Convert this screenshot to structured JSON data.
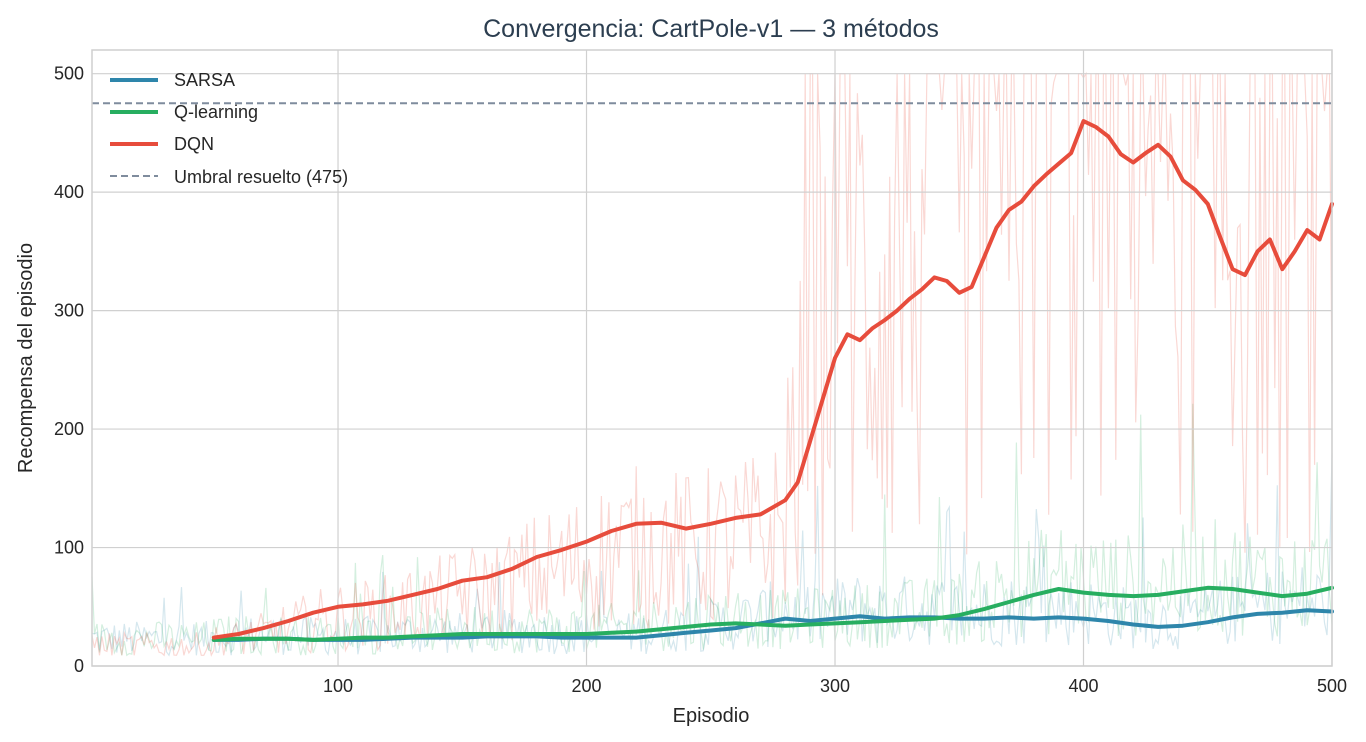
{
  "chart_data": {
    "type": "line",
    "title": "Convergencia: CartPole-v1 — 3 métodos",
    "xlabel": "Episodio",
    "ylabel": "Recompensa del episodio",
    "xlim": [
      1,
      500
    ],
    "ylim": [
      0,
      520
    ],
    "x_ticks": [
      "100",
      "200",
      "300",
      "400",
      "500"
    ],
    "y_ticks": [
      "0",
      "100",
      "200",
      "300",
      "400",
      "500"
    ],
    "grid": true,
    "legend_position": "top-left",
    "threshold": {
      "name": "Umbral resuelto (475)",
      "value": 475,
      "color": "#7f8c9d"
    },
    "series": [
      {
        "name": "SARSA",
        "color": "#2e86ab",
        "smoothed": [
          [
            50,
            22
          ],
          [
            60,
            22
          ],
          [
            70,
            23
          ],
          [
            80,
            23
          ],
          [
            90,
            22
          ],
          [
            100,
            22
          ],
          [
            110,
            22
          ],
          [
            120,
            23
          ],
          [
            130,
            24
          ],
          [
            140,
            24
          ],
          [
            150,
            24
          ],
          [
            160,
            25
          ],
          [
            170,
            25
          ],
          [
            180,
            25
          ],
          [
            190,
            24
          ],
          [
            200,
            24
          ],
          [
            210,
            24
          ],
          [
            220,
            24
          ],
          [
            230,
            26
          ],
          [
            240,
            28
          ],
          [
            250,
            30
          ],
          [
            260,
            32
          ],
          [
            270,
            36
          ],
          [
            280,
            40
          ],
          [
            290,
            38
          ],
          [
            300,
            40
          ],
          [
            310,
            42
          ],
          [
            320,
            40
          ],
          [
            330,
            41
          ],
          [
            340,
            41
          ],
          [
            350,
            40
          ],
          [
            360,
            40
          ],
          [
            370,
            41
          ],
          [
            380,
            40
          ],
          [
            390,
            41
          ],
          [
            400,
            40
          ],
          [
            410,
            38
          ],
          [
            420,
            35
          ],
          [
            430,
            33
          ],
          [
            440,
            34
          ],
          [
            450,
            37
          ],
          [
            460,
            41
          ],
          [
            470,
            44
          ],
          [
            480,
            45
          ],
          [
            490,
            47
          ],
          [
            500,
            46
          ]
        ]
      },
      {
        "name": "Q-learning",
        "color": "#27ae60",
        "smoothed": [
          [
            50,
            22
          ],
          [
            60,
            23
          ],
          [
            70,
            23
          ],
          [
            80,
            23
          ],
          [
            90,
            22
          ],
          [
            100,
            23
          ],
          [
            110,
            24
          ],
          [
            120,
            24
          ],
          [
            130,
            25
          ],
          [
            140,
            26
          ],
          [
            150,
            27
          ],
          [
            160,
            27
          ],
          [
            170,
            27
          ],
          [
            180,
            27
          ],
          [
            190,
            27
          ],
          [
            200,
            27
          ],
          [
            210,
            28
          ],
          [
            220,
            29
          ],
          [
            230,
            31
          ],
          [
            240,
            33
          ],
          [
            250,
            35
          ],
          [
            260,
            36
          ],
          [
            270,
            35
          ],
          [
            280,
            34
          ],
          [
            290,
            35
          ],
          [
            300,
            36
          ],
          [
            310,
            37
          ],
          [
            320,
            38
          ],
          [
            330,
            39
          ],
          [
            340,
            40
          ],
          [
            350,
            43
          ],
          [
            360,
            48
          ],
          [
            370,
            54
          ],
          [
            380,
            60
          ],
          [
            390,
            65
          ],
          [
            400,
            62
          ],
          [
            410,
            60
          ],
          [
            420,
            59
          ],
          [
            430,
            60
          ],
          [
            440,
            63
          ],
          [
            450,
            66
          ],
          [
            460,
            65
          ],
          [
            470,
            62
          ],
          [
            480,
            59
          ],
          [
            490,
            61
          ],
          [
            500,
            66
          ]
        ]
      },
      {
        "name": "DQN",
        "color": "#e74c3c",
        "smoothed": [
          [
            50,
            24
          ],
          [
            60,
            27
          ],
          [
            70,
            32
          ],
          [
            80,
            38
          ],
          [
            90,
            45
          ],
          [
            100,
            50
          ],
          [
            110,
            52
          ],
          [
            120,
            55
          ],
          [
            130,
            60
          ],
          [
            140,
            65
          ],
          [
            150,
            72
          ],
          [
            160,
            75
          ],
          [
            170,
            82
          ],
          [
            180,
            92
          ],
          [
            190,
            98
          ],
          [
            200,
            105
          ],
          [
            210,
            114
          ],
          [
            220,
            120
          ],
          [
            230,
            121
          ],
          [
            240,
            116
          ],
          [
            250,
            120
          ],
          [
            260,
            125
          ],
          [
            270,
            128
          ],
          [
            280,
            140
          ],
          [
            285,
            155
          ],
          [
            290,
            190
          ],
          [
            295,
            225
          ],
          [
            300,
            260
          ],
          [
            305,
            280
          ],
          [
            310,
            275
          ],
          [
            315,
            285
          ],
          [
            320,
            292
          ],
          [
            325,
            300
          ],
          [
            330,
            310
          ],
          [
            335,
            318
          ],
          [
            340,
            328
          ],
          [
            345,
            325
          ],
          [
            350,
            315
          ],
          [
            355,
            320
          ],
          [
            360,
            345
          ],
          [
            365,
            370
          ],
          [
            370,
            385
          ],
          [
            375,
            392
          ],
          [
            380,
            405
          ],
          [
            385,
            415
          ],
          [
            390,
            424
          ],
          [
            395,
            433
          ],
          [
            400,
            460
          ],
          [
            405,
            455
          ],
          [
            410,
            447
          ],
          [
            415,
            432
          ],
          [
            420,
            425
          ],
          [
            425,
            433
          ],
          [
            430,
            440
          ],
          [
            435,
            430
          ],
          [
            440,
            410
          ],
          [
            445,
            402
          ],
          [
            450,
            390
          ],
          [
            455,
            362
          ],
          [
            460,
            335
          ],
          [
            465,
            330
          ],
          [
            470,
            350
          ],
          [
            475,
            360
          ],
          [
            480,
            335
          ],
          [
            485,
            350
          ],
          [
            490,
            368
          ],
          [
            495,
            360
          ],
          [
            500,
            390
          ]
        ]
      }
    ]
  }
}
